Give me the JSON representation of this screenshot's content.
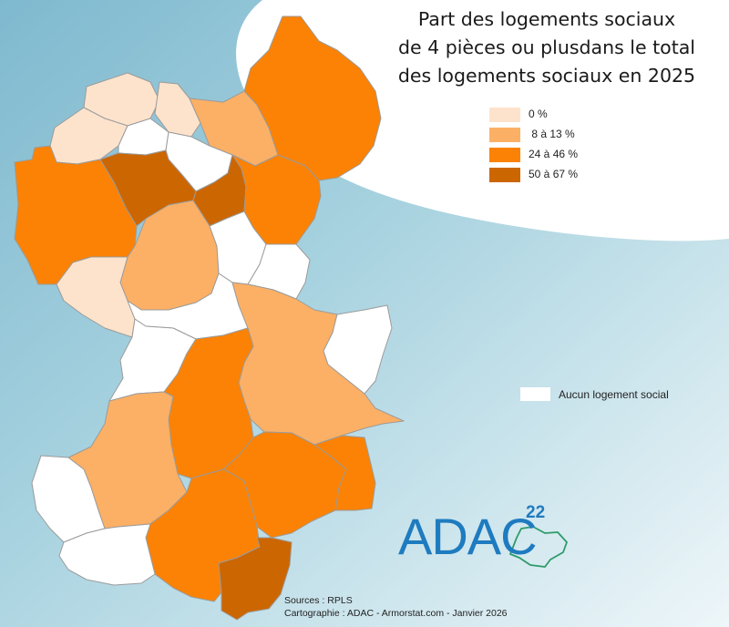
{
  "title": {
    "line1": "Part des logements sociaux",
    "line2": "de 4 pièces ou plusdans le total",
    "line3": "des logements sociaux en 2025"
  },
  "legend": {
    "classes": [
      {
        "label": "0 %",
        "color": "#fde3cc"
      },
      {
        "label": " 8 à 13 %",
        "color": "#fcb065"
      },
      {
        "label": "24 à 46 %",
        "color": "#fb8204"
      },
      {
        "label": "50 à 67 %",
        "color": "#cc6601"
      }
    ],
    "no_data": {
      "label": "Aucun logement social",
      "color": "#ffffff"
    }
  },
  "colors": {
    "border": "#9b9b9b",
    "background_blue": "#8fc5d6",
    "background_light": "#eef6f9",
    "logo_blue": "#1f7bbf",
    "logo_green": "#2e9b6a"
  },
  "logo": {
    "word": "ADAC",
    "number": "22"
  },
  "sources": {
    "line1": "Sources : RPLS",
    "line2": "Cartographie : ADAC - Armorstat.com - Janvier 2026"
  }
}
